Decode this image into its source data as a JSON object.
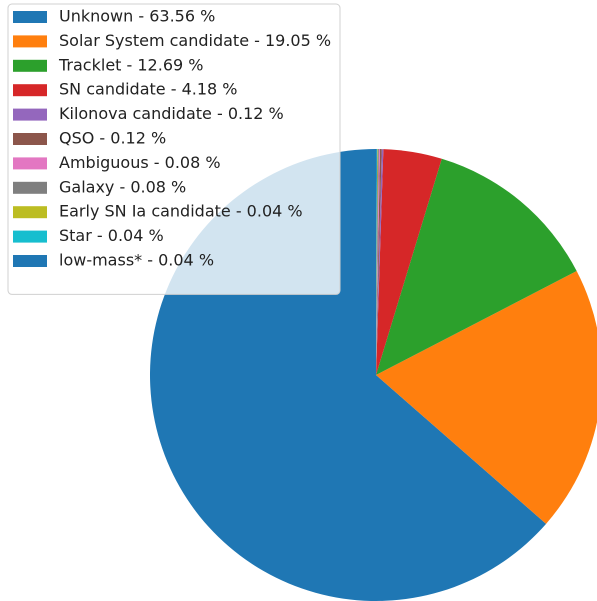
{
  "chart_data": {
    "type": "pie",
    "categories": [
      "Unknown - 63.56 %",
      "Solar System candidate - 19.05 %",
      "Tracklet - 12.69 %",
      "SN candidate - 4.18 %",
      "Kilonova candidate - 0.12 %",
      "QSO - 0.12 %",
      "Ambiguous - 0.08 %",
      "Galaxy - 0.08 %",
      "Early SN Ia candidate - 0.04 %",
      "Star - 0.04 %",
      "low-mass* - 0.04 %"
    ],
    "values": [
      63.56,
      19.05,
      12.69,
      4.18,
      0.12,
      0.12,
      0.08,
      0.08,
      0.04,
      0.04,
      0.04
    ],
    "colors": [
      "#1f77b4",
      "#ff7f0e",
      "#2ca02c",
      "#d62728",
      "#9467bd",
      "#8c564b",
      "#e377c2",
      "#7f7f7f",
      "#bcbd22",
      "#17becf",
      "#1f77b4"
    ],
    "startangle": 90,
    "legend": "upper left"
  }
}
